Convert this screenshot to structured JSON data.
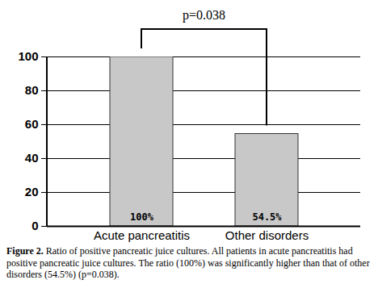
{
  "chart_data": {
    "type": "bar",
    "categories": [
      "Acute pancreatitis",
      "Other disorders"
    ],
    "values": [
      100,
      54.5
    ],
    "value_labels": [
      "100%",
      "54.5%"
    ],
    "data_labels": true,
    "color": "#c8c8c8",
    "ylim": [
      0,
      100
    ],
    "yticks": [
      0,
      20,
      40,
      60,
      80,
      100
    ],
    "grid": true,
    "annotations": [
      {
        "text": "p=0.038",
        "between": [
          "Acute pancreatitis",
          "Other disorders"
        ]
      }
    ],
    "caption": {
      "label": "Figure 2.",
      "text": "Ratio of positive pancreatic juice cultures. All patients in acute pancreatitis had positive pancreatic juice cultures. The ratio (100%) was significantly higher than that of other disorders (54.5%) (p=0.038)."
    }
  }
}
